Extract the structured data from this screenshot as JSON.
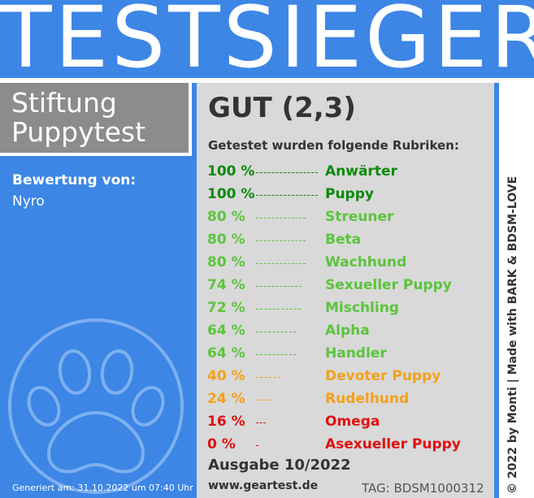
{
  "header": {
    "title": "TESTSIEGER"
  },
  "brand": {
    "line1": "Stiftung",
    "line2": "Puppytest"
  },
  "review": {
    "label": "Bewertung von:",
    "name": "Nyro"
  },
  "generated": "Generiert am: 31.10.2022 um 07:40 Uhr",
  "result": {
    "grade": "GUT (2,3)",
    "subheading": "Getestet wurden folgende Rubriken:",
    "rows": [
      {
        "percent": "100 %",
        "value": 100,
        "category": "Anwärter",
        "color": "#0a8a0a"
      },
      {
        "percent": "100 %",
        "value": 100,
        "category": "Puppy",
        "color": "#0a8a0a"
      },
      {
        "percent": "80 %",
        "value": 80,
        "category": "Streuner",
        "color": "#5cc43c"
      },
      {
        "percent": "80 %",
        "value": 80,
        "category": "Beta",
        "color": "#5cc43c"
      },
      {
        "percent": "80 %",
        "value": 80,
        "category": "Wachhund",
        "color": "#5cc43c"
      },
      {
        "percent": "74 %",
        "value": 74,
        "category": "Sexueller Puppy",
        "color": "#5cc43c"
      },
      {
        "percent": "72 %",
        "value": 72,
        "category": "Mischling",
        "color": "#5cc43c"
      },
      {
        "percent": "64 %",
        "value": 64,
        "category": "Alpha",
        "color": "#5cc43c"
      },
      {
        "percent": "64 %",
        "value": 64,
        "category": "Handler",
        "color": "#5cc43c"
      },
      {
        "percent": "40 %",
        "value": 40,
        "category": "Devoter Puppy",
        "color": "#f5a01a"
      },
      {
        "percent": "24 %",
        "value": 24,
        "category": "Rudelhund",
        "color": "#f5a01a"
      },
      {
        "percent": "16 %",
        "value": 16,
        "category": "Omega",
        "color": "#e01010"
      },
      {
        "percent": "0 %",
        "value": 0,
        "category": "Asexueller Puppy",
        "color": "#e01010"
      }
    ]
  },
  "footer": {
    "edition": "Ausgabe 10/2022",
    "url": "www.geartest.de",
    "tag": "TAG: BDSM1000312"
  },
  "sidebar_credit": "© 2022 by Monti | Made with BARK & BDSM-LOVE"
}
